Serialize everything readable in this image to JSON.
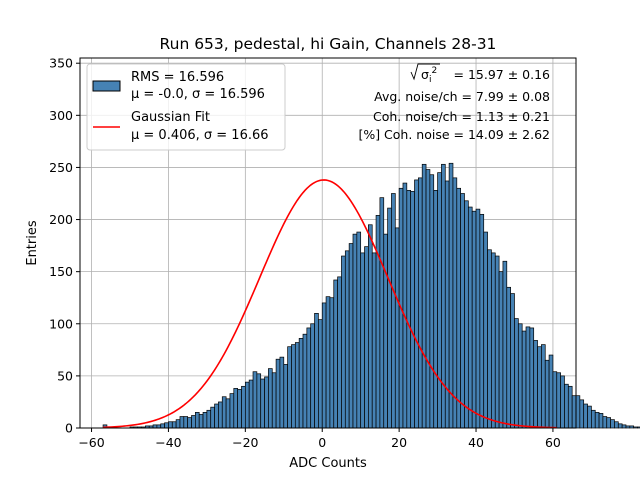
{
  "chart_data": {
    "type": "bar",
    "title": "Run 653, pedestal, hi Gain, Channels 28-31",
    "xlabel": "ADC Counts",
    "ylabel": "Entries",
    "xlim": [
      -63,
      66
    ],
    "ylim": [
      0,
      355
    ],
    "xticks": [
      -60,
      -40,
      -20,
      0,
      20,
      40,
      60
    ],
    "yticks": [
      0,
      50,
      100,
      150,
      200,
      250,
      300,
      350
    ],
    "grid": true,
    "legend_position": "top-left",
    "legend": [
      {
        "label_line1": "RMS = 16.596",
        "label_line2": "μ = -0.0, σ = 16.596",
        "kind": "histogram"
      },
      {
        "label_line1": "Gaussian Fit",
        "label_line2": "μ = 0.406, σ = 16.66",
        "kind": "line"
      }
    ],
    "annotations": [
      {
        "prefix": "σ",
        "sub": "i",
        "sup": "2",
        "text": " = 15.97 ± 0.16"
      },
      {
        "text": "Avg. noise/ch = 7.99 ± 0.08"
      },
      {
        "text": "Coh. noise/ch = 1.13 ± 0.21"
      },
      {
        "text": "[%] Coh. noise = 14.09 ± 2.62"
      }
    ],
    "histogram": {
      "name": "RMS = 16.596",
      "bin_width": 1,
      "bin_start": -57,
      "values": [
        3,
        0,
        0,
        0,
        0,
        0,
        0,
        1,
        1,
        1,
        1,
        2,
        2,
        3,
        3,
        4,
        5,
        6,
        6,
        8,
        11,
        11,
        10,
        12,
        15,
        13,
        15,
        17,
        20,
        23,
        25,
        30,
        28,
        33,
        38,
        37,
        40,
        44,
        46,
        54,
        52,
        47,
        49,
        57,
        53,
        66,
        68,
        61,
        78,
        80,
        82,
        86,
        90,
        96,
        100,
        110,
        104,
        120,
        126,
        125,
        142,
        145,
        165,
        170,
        177,
        186,
        188,
        168,
        174,
        195,
        168,
        204,
        221,
        186,
        211,
        225,
        192,
        230,
        235,
        228,
        227,
        238,
        240,
        253,
        248,
        243,
        228,
        245,
        253,
        237,
        254,
        240,
        230,
        225,
        218,
        212,
        208,
        210,
        205,
        188,
        171,
        168,
        165,
        150,
        160,
        135,
        129,
        105,
        100,
        93,
        97,
        96,
        84,
        78,
        80,
        65,
        70,
        54,
        53,
        50,
        42,
        40,
        31,
        31,
        27,
        23,
        21,
        17,
        15,
        14,
        11,
        10,
        8,
        6,
        4,
        3,
        2,
        2,
        1,
        1,
        1,
        0,
        0,
        0,
        1,
        2,
        6,
        0
      ]
    },
    "fit": {
      "name": "Gaussian Fit",
      "mu": 0.406,
      "sigma": 16.66,
      "amplitude": 238,
      "color": "#ff0000"
    },
    "colors": {
      "bar_fill": "#4682b4",
      "bar_edge": "#000000",
      "grid": "#b0b0b0",
      "fit": "#ff0000"
    }
  }
}
